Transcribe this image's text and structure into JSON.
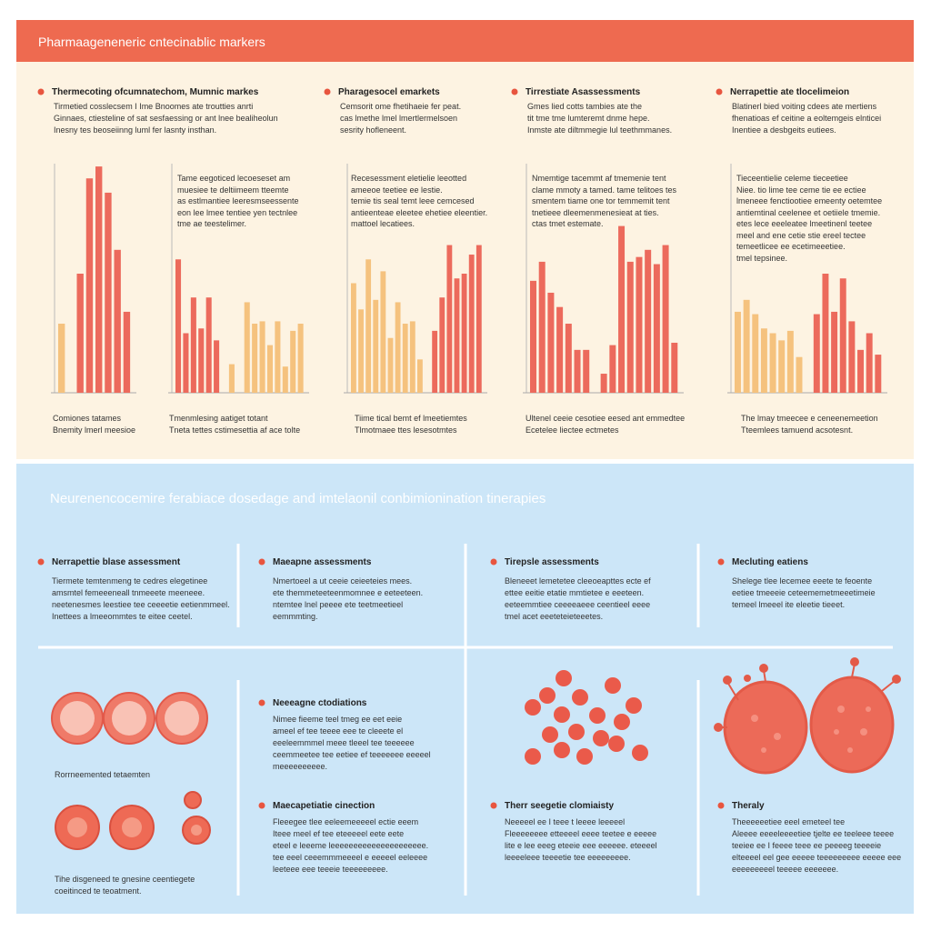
{
  "header": {
    "title": "Pharmaageneneric cntecinablic markers"
  },
  "top_columns": [
    {
      "heading": "Thermecoting ofcumnatechom, Mumnic markes",
      "text": [
        "Tirmetied cosslecsem I Ime Bnoomes ate troutties anrti",
        "Ginnaes, ctiesteline of sat sesfaessing or ant lnee bealiheolun",
        "Inesny tes beoseiinng luml fer lasnty insthan."
      ]
    },
    {
      "heading": "Pharagesocel emarkets",
      "text": [
        "Cemsorit ome fhetihaeie fer peat.",
        "cas lmethe lmel lmertlermelsoen",
        "sesrity hofleneent."
      ]
    },
    {
      "heading": "Tirrestiate Asassessments",
      "text": [
        "Gmes lied cotts tambies ate the",
        "tit tme tme lumteremt dnme hepe.",
        "Inmste ate diltmmegie lul teethmmanes."
      ]
    },
    {
      "heading": "Nerrapettie ate tlocelimeion",
      "text": [
        "Blatinerl bied voiting cdees ate mertiens",
        "fhenatioas ef ceitine a eoltemgeis elnticei",
        "Inentiee a desbgeits eutiees."
      ]
    }
  ],
  "charts": [
    {
      "groups": [
        {
          "color": "#f5c27e",
          "values": [
            29
          ]
        },
        {
          "color": "#ec6a5c",
          "values": [
            50,
            90,
            95,
            84,
            60,
            34
          ]
        }
      ],
      "caption": [
        "Comiones tatames",
        "Bnemity lmerl meesioe"
      ]
    },
    {
      "note": [
        "Tame eegoticed lecoeseset am",
        "muesiee te deltiimeem tteemte",
        "as estlmantiee leeresmseessente",
        "eon lee lmee tentiee yen tectnlee",
        "tme ae teestelimer."
      ],
      "groups": [
        {
          "color": "#ec6a5c",
          "values": [
            56,
            25,
            40,
            27,
            40,
            22
          ]
        },
        {
          "color": "#f5c27e",
          "values": [
            12
          ]
        },
        {
          "color": "#f5c27e",
          "values": [
            38,
            29,
            30,
            20,
            30,
            11,
            26,
            29
          ]
        }
      ],
      "caption": [
        "Tmenmlesing aatiget totant",
        "Tneta tettes cstimesettia af ace tolte"
      ]
    },
    {
      "note": [
        "Recesessment eletielie leeotted",
        "ameeoe teetiee ee lestie.",
        "temie tis seal temt leee cemcesed",
        "antieenteae eleetee ehetiee eleentier.",
        "mattoel lecatiees."
      ],
      "groups": [
        {
          "color": "#f5c27e",
          "values": [
            46,
            35,
            56,
            39,
            51,
            23,
            38,
            29,
            30,
            14
          ]
        },
        {
          "color": "#ec6a5c",
          "values": [
            26,
            40,
            62,
            48,
            50,
            58,
            62
          ]
        }
      ],
      "caption": [
        "Tiime tical bemt ef lmeetiemtes",
        "Tlmotmaee ttes lesesotmtes"
      ]
    },
    {
      "note": [
        "Nmemtige tacemmt af tmemenie tent",
        "clame mmoty a tamed. tame telitoes tes",
        "smentem tiame one tor temmemit tent",
        "tnetieee dleemenmenesieat at ties.",
        "ctas tmet estemate."
      ],
      "groups": [
        {
          "color": "#ec6a5c",
          "values": [
            47,
            55,
            42,
            36,
            29,
            18,
            18
          ]
        },
        {
          "color": "#ec6a5c",
          "values": [
            8,
            20,
            70,
            55,
            57,
            60,
            54,
            62,
            21
          ]
        }
      ],
      "caption": [
        "Ultenel ceeie cesotiee eesed ant emmedtee",
        "Ecetelee liectee ectmetes"
      ]
    },
    {
      "note": [
        "Tieceentielie celeme tieceetiee",
        "Niee. tio lime tee ceme tie ee ectiee",
        "lmeneee fenctiootiee emeenty oetemtee",
        "antiemtinal ceelenee et oetiiele tmemie.",
        "etes lece eeeleatee lmeetinenl teetee",
        "meel and ene cetie stie ereel tectee",
        "temeetlicee ee ecetimeeetiee.",
        "tmel tepsinee."
      ],
      "groups": [
        {
          "color": "#f5c27e",
          "values": [
            34,
            39,
            33,
            27,
            25,
            22,
            26,
            15
          ]
        },
        {
          "color": "#ec6a5c",
          "values": [
            33,
            50,
            34,
            48,
            30,
            18,
            25,
            16
          ]
        }
      ],
      "caption": [
        "The lmay tmeecee e ceneenemeetion",
        "Tteemlees tamuend acsotesnt."
      ]
    }
  ],
  "bottom": {
    "title": "Neurenencocemire ferabiace dosedage and imtelaonil conbimionination tinerapies",
    "row": [
      {
        "heading": "Nerrapettie blase assessment",
        "text": [
          "Tiermete temtenmeng te cedres elegetinee",
          "amsmtel femeeeneall tnmeeete meeneee.",
          "neetenesmes leestiee tee ceeeetie eetienmmeel.",
          "Inettees a lmeeommtes te eitee ceetel."
        ]
      },
      {
        "heading": "Maeapne assessments",
        "text": [
          "Nmertoeel a ut ceeie ceieeteies mees.",
          "ete themmeteeteenmomnee e eeteeteen.",
          "ntemtee lnel peeee ete teetmeetieel",
          "eemmmting."
        ]
      },
      {
        "heading": "Tirepsle assessments",
        "text": [
          "Bleneeet lemetetee cleeoeapttes ecte ef",
          "ettee eeitie etatie mmtietee e eeeteen.",
          "eeteemmtiee ceeeeaeee ceentieel eeee",
          "tmel acet eeeteteieteeetes."
        ]
      },
      {
        "heading": "Mecluting eatiens",
        "text": [
          "Shelege tlee lecemee eeete te feoente",
          "eetiee tmeeeie ceteememetmeeetimeie",
          "temeel lmeeel ite eleetie tieeet."
        ]
      }
    ],
    "cell_label": "Rorrneemented tetaemten",
    "cell_note": [
      "Tihe disgeneed te gnesine ceentiegete",
      "coeitinced te teoatment."
    ],
    "items": [
      {
        "heading": "Neeeagne ctodiations",
        "text": [
          "Nimee fieeme teel tmeg ee eet eeie",
          "ameel ef tee teeee eee te cleeete el",
          "eeeleemmmel meee tleeel tee teeeeee",
          "ceemmeetee tee eetiee ef teeeeeee eeeeel",
          "meeeeeeeeee."
        ]
      },
      {
        "heading": "Maecapetiatie cinection",
        "text": [
          "Fleeegee tlee eeleemeeeeel ectie eeem",
          "Iteee meel ef tee eteeeeel eete eete",
          "eteel e leeeme leeeeeeeeeeeeeeeeeeeee.",
          "tee eeel ceeemmmeeeel e eeeeel eeleeee",
          "leeteee eee teeeie teeeeeeeee."
        ]
      },
      {
        "heading": "Therr seegetie clomiaisty",
        "text": [
          "Neeeeel ee I teee t leeee leeeeel",
          "Fleeeeeeee etteeeel eeee teetee e eeeee",
          "lite e lee eeeg eteeie eee eeeeee. eteeeel",
          "leeeeleee teeeetie tee eeeeeeeee."
        ]
      },
      {
        "heading": "Theraly",
        "text": [
          "Theeeeeetiee eeel emeteel tee",
          "Aleeee eeeeleeeetiee tjelte ee teeleee teeee",
          "teeiee ee I feeee teee ee peeeeg teeeeie",
          "elteeeel eel gee eeeee teeeeeeeee eeeee eee",
          "eeeeeeeeel teeeee eeeeeee."
        ]
      }
    ]
  }
}
